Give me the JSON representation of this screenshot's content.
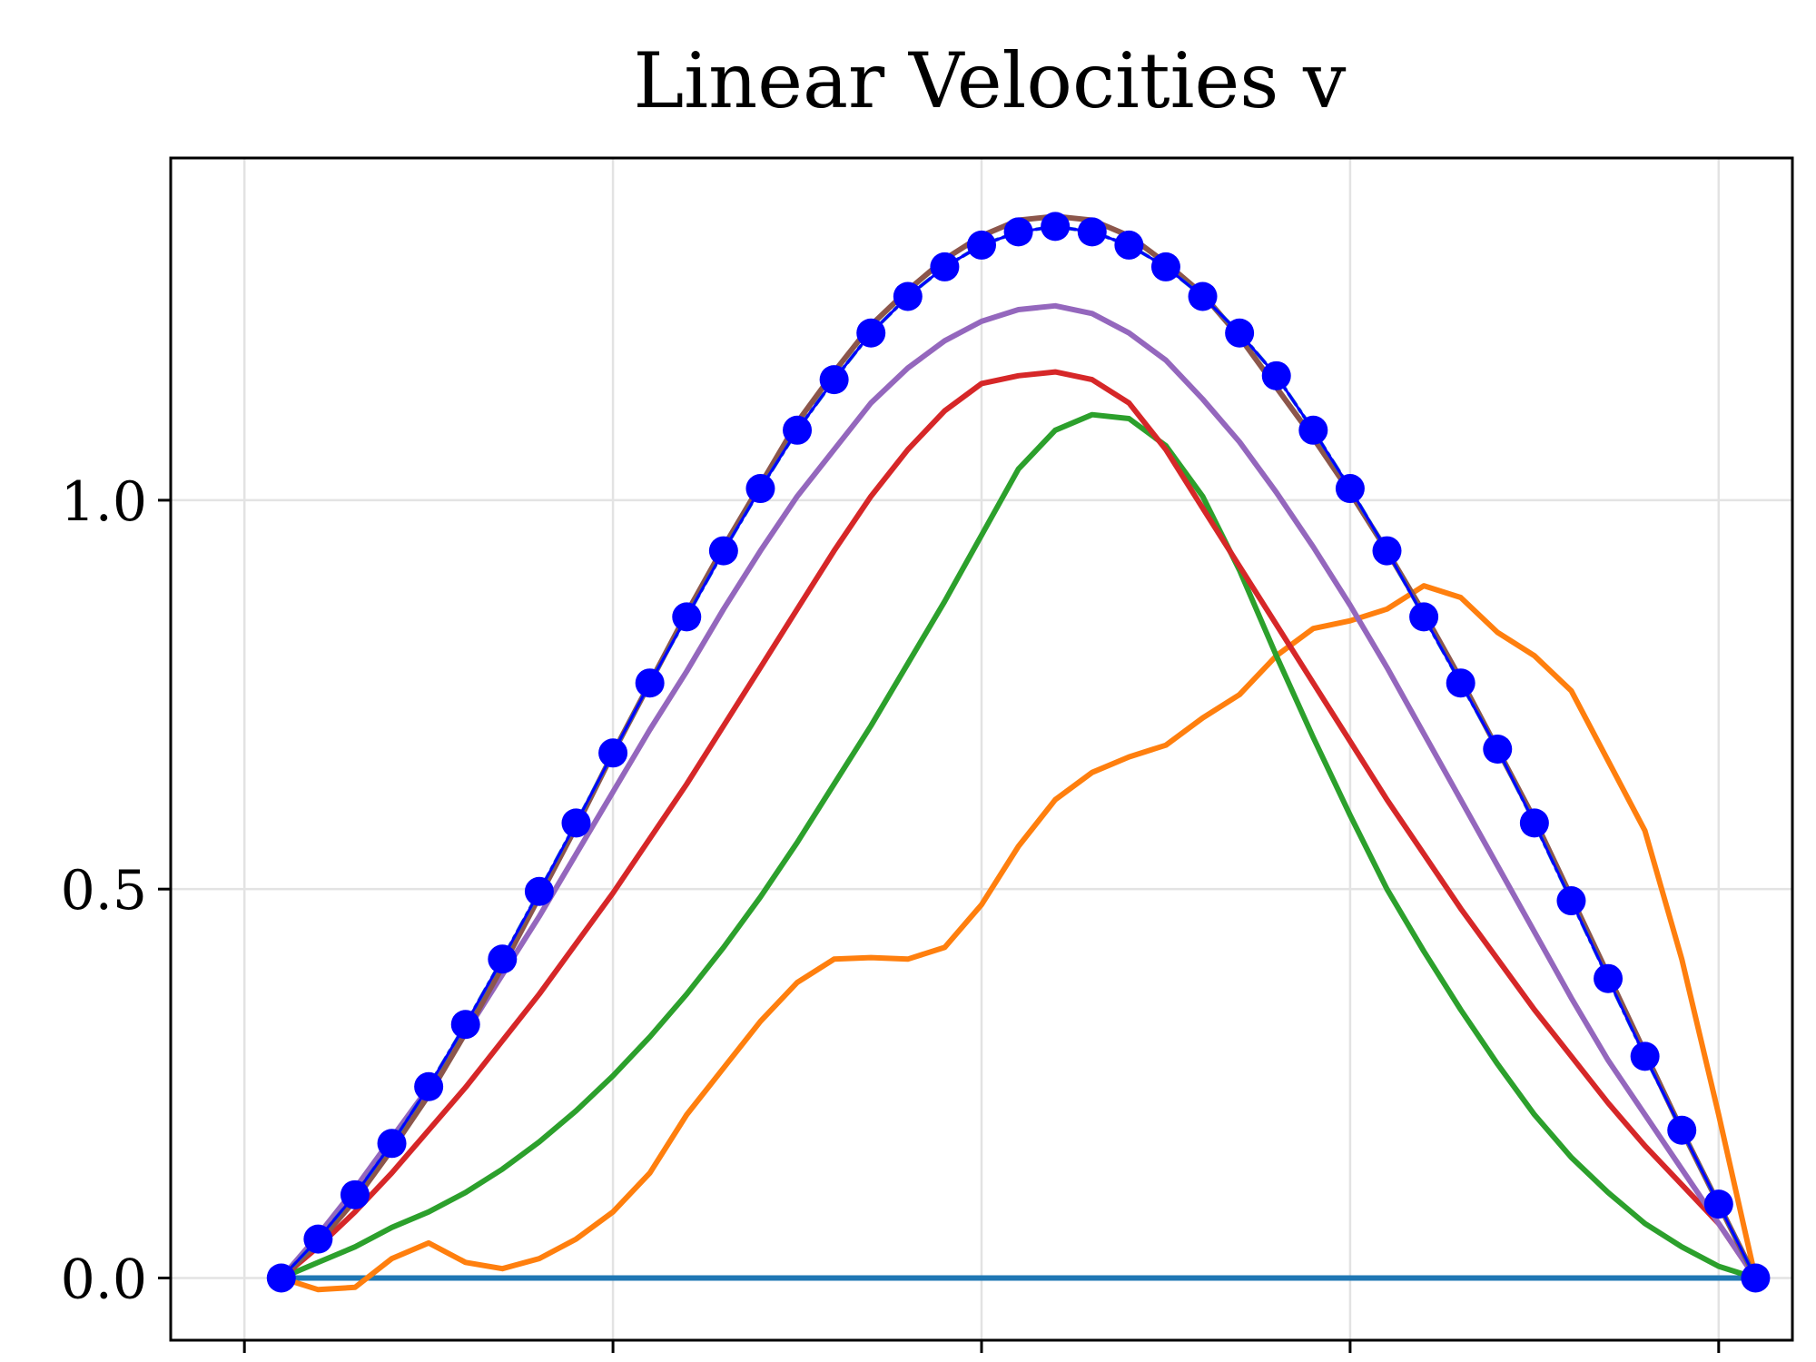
{
  "chart_data": {
    "type": "line",
    "title": "Linear Velocities v",
    "xlabel": "",
    "ylabel": "",
    "xlim": [
      -0.1,
      2.1
    ],
    "ylim": [
      -0.08,
      1.44
    ],
    "grid": true,
    "legend": "none",
    "x_ticks": [
      0,
      0.5,
      1.0,
      1.5,
      2.0
    ],
    "x_tick_labels": [
      "",
      "",
      "",
      "",
      ""
    ],
    "y_ticks": [
      0.0,
      0.5,
      1.0
    ],
    "y_tick_labels": [
      "0.0",
      "0.5",
      "1.0"
    ],
    "colors": {
      "blue_line": "#1f77b4",
      "orange": "#ff7f0e",
      "green": "#2ca02c",
      "red": "#d62728",
      "purple": "#9467bd",
      "brown": "#8c564b",
      "markers": "#0000ff"
    },
    "series": [
      {
        "color": "#1f77b4",
        "x": [
          0.05,
          2.05
        ],
        "y": [
          0.0,
          0.0
        ]
      },
      {
        "color": "#ff7f0e",
        "x": [
          0.05,
          0.1,
          0.15,
          0.2,
          0.25,
          0.3,
          0.35,
          0.4,
          0.45,
          0.5,
          0.55,
          0.6,
          0.65,
          0.7,
          0.75,
          0.8,
          0.85,
          0.9,
          0.95,
          1.0,
          1.05,
          1.1,
          1.15,
          1.2,
          1.25,
          1.3,
          1.35,
          1.4,
          1.45,
          1.5,
          1.55,
          1.6,
          1.65,
          1.7,
          1.75,
          1.8,
          1.85,
          1.9,
          1.95,
          2.0,
          2.05
        ],
        "y": [
          0.0,
          -0.015,
          -0.012,
          0.025,
          0.045,
          0.02,
          0.012,
          0.025,
          0.05,
          0.085,
          0.135,
          0.21,
          0.27,
          0.33,
          0.38,
          0.41,
          0.412,
          0.41,
          0.425,
          0.48,
          0.555,
          0.615,
          0.65,
          0.67,
          0.685,
          0.72,
          0.75,
          0.8,
          0.835,
          0.845,
          0.86,
          0.89,
          0.875,
          0.83,
          0.8,
          0.755,
          0.665,
          0.575,
          0.41,
          0.21,
          0.0
        ]
      },
      {
        "color": "#2ca02c",
        "x": [
          0.05,
          0.1,
          0.15,
          0.2,
          0.25,
          0.3,
          0.35,
          0.4,
          0.45,
          0.5,
          0.55,
          0.6,
          0.65,
          0.7,
          0.75,
          0.8,
          0.85,
          0.9,
          0.95,
          1.0,
          1.05,
          1.1,
          1.15,
          1.2,
          1.25,
          1.3,
          1.35,
          1.4,
          1.45,
          1.5,
          1.55,
          1.6,
          1.65,
          1.7,
          1.75,
          1.8,
          1.85,
          1.9,
          1.95,
          2.0,
          2.05
        ],
        "y": [
          0.0,
          0.02,
          0.04,
          0.065,
          0.085,
          0.11,
          0.14,
          0.175,
          0.215,
          0.26,
          0.31,
          0.365,
          0.425,
          0.49,
          0.56,
          0.635,
          0.71,
          0.79,
          0.87,
          0.955,
          1.04,
          1.09,
          1.11,
          1.105,
          1.07,
          1.005,
          0.91,
          0.8,
          0.695,
          0.595,
          0.5,
          0.42,
          0.345,
          0.275,
          0.21,
          0.155,
          0.11,
          0.07,
          0.04,
          0.015,
          0.0
        ]
      },
      {
        "color": "#d62728",
        "x": [
          0.05,
          0.1,
          0.15,
          0.2,
          0.25,
          0.3,
          0.35,
          0.4,
          0.45,
          0.5,
          0.55,
          0.6,
          0.65,
          0.7,
          0.75,
          0.8,
          0.85,
          0.9,
          0.95,
          1.0,
          1.05,
          1.1,
          1.15,
          1.2,
          1.25,
          1.3,
          1.35,
          1.4,
          1.45,
          1.5,
          1.55,
          1.6,
          1.65,
          1.7,
          1.75,
          1.8,
          1.85,
          1.9,
          1.95,
          2.0,
          2.05
        ],
        "y": [
          0.0,
          0.04,
          0.085,
          0.135,
          0.19,
          0.245,
          0.305,
          0.365,
          0.43,
          0.495,
          0.565,
          0.635,
          0.71,
          0.785,
          0.86,
          0.935,
          1.005,
          1.065,
          1.115,
          1.15,
          1.16,
          1.165,
          1.155,
          1.125,
          1.065,
          0.99,
          0.915,
          0.84,
          0.765,
          0.69,
          0.615,
          0.545,
          0.475,
          0.41,
          0.345,
          0.285,
          0.225,
          0.17,
          0.12,
          0.07,
          0.0
        ]
      },
      {
        "color": "#9467bd",
        "x": [
          0.05,
          0.1,
          0.15,
          0.2,
          0.25,
          0.3,
          0.35,
          0.4,
          0.45,
          0.5,
          0.55,
          0.6,
          0.65,
          0.7,
          0.75,
          0.8,
          0.85,
          0.9,
          0.95,
          1.0,
          1.05,
          1.1,
          1.15,
          1.2,
          1.25,
          1.3,
          1.35,
          1.4,
          1.45,
          1.5,
          1.55,
          1.6,
          1.65,
          1.7,
          1.75,
          1.8,
          1.85,
          1.9,
          1.95,
          2.0,
          2.05
        ],
        "y": [
          0.0,
          0.055,
          0.115,
          0.18,
          0.245,
          0.315,
          0.39,
          0.465,
          0.545,
          0.625,
          0.705,
          0.78,
          0.86,
          0.935,
          1.005,
          1.065,
          1.125,
          1.17,
          1.205,
          1.23,
          1.245,
          1.25,
          1.24,
          1.215,
          1.18,
          1.13,
          1.075,
          1.01,
          0.94,
          0.865,
          0.785,
          0.7,
          0.615,
          0.53,
          0.445,
          0.36,
          0.28,
          0.21,
          0.14,
          0.07,
          0.0
        ]
      },
      {
        "color": "#8c564b",
        "x": [
          0.05,
          0.1,
          0.15,
          0.2,
          0.25,
          0.3,
          0.35,
          0.4,
          0.45,
          0.5,
          0.55,
          0.6,
          0.65,
          0.7,
          0.75,
          0.8,
          0.85,
          0.9,
          0.95,
          1.0,
          1.05,
          1.1,
          1.15,
          1.2,
          1.25,
          1.3,
          1.35,
          1.4,
          1.45,
          1.5,
          1.55,
          1.6,
          1.65,
          1.7,
          1.75,
          1.8,
          1.85,
          1.9,
          1.95,
          2.0,
          2.05
        ],
        "y": [
          0.0,
          0.045,
          0.1,
          0.165,
          0.235,
          0.315,
          0.4,
          0.49,
          0.58,
          0.675,
          0.765,
          0.855,
          0.94,
          1.02,
          1.1,
          1.165,
          1.225,
          1.27,
          1.31,
          1.34,
          1.36,
          1.365,
          1.36,
          1.34,
          1.305,
          1.265,
          1.21,
          1.145,
          1.08,
          1.01,
          0.935,
          0.855,
          0.77,
          0.68,
          0.59,
          0.49,
          0.39,
          0.29,
          0.19,
          0.095,
          0.0
        ]
      },
      {
        "color": "#1f77b4",
        "style": "dashdot",
        "x": [
          0.05,
          0.1,
          0.15,
          0.2,
          0.25,
          0.3,
          0.35,
          0.4,
          0.45,
          0.5,
          0.55,
          0.6,
          0.65,
          0.7,
          0.75,
          0.8,
          0.85,
          0.9,
          0.95,
          1.0,
          1.05,
          1.1,
          1.15,
          1.2,
          1.25,
          1.3,
          1.35,
          1.4,
          1.45,
          1.5,
          1.55,
          1.6,
          1.65,
          1.7,
          1.75,
          1.8,
          1.85,
          1.9,
          1.95,
          2.0,
          2.05
        ],
        "y": [
          0.0,
          0.05,
          0.107,
          0.173,
          0.246,
          0.326,
          0.41,
          0.497,
          0.585,
          0.675,
          0.765,
          0.85,
          0.935,
          1.015,
          1.09,
          1.155,
          1.215,
          1.262,
          1.3,
          1.328,
          1.345,
          1.352,
          1.345,
          1.328,
          1.3,
          1.262,
          1.215,
          1.16,
          1.09,
          1.015,
          0.935,
          0.85,
          0.765,
          0.68,
          0.585,
          0.485,
          0.385,
          0.285,
          0.19,
          0.095,
          0.0
        ]
      },
      {
        "color": "#0000ff",
        "markers": true,
        "x": [
          0.05,
          0.1,
          0.15,
          0.2,
          0.25,
          0.3,
          0.35,
          0.4,
          0.45,
          0.5,
          0.55,
          0.6,
          0.65,
          0.7,
          0.75,
          0.8,
          0.85,
          0.9,
          0.95,
          1.0,
          1.05,
          1.1,
          1.15,
          1.2,
          1.25,
          1.3,
          1.35,
          1.4,
          1.45,
          1.5,
          1.55,
          1.6,
          1.65,
          1.7,
          1.75,
          1.8,
          1.85,
          1.9,
          1.95,
          2.0,
          2.05
        ],
        "y": [
          0.0,
          0.05,
          0.107,
          0.173,
          0.246,
          0.326,
          0.41,
          0.497,
          0.585,
          0.675,
          0.765,
          0.85,
          0.935,
          1.015,
          1.09,
          1.155,
          1.215,
          1.262,
          1.3,
          1.328,
          1.345,
          1.352,
          1.345,
          1.328,
          1.3,
          1.262,
          1.215,
          1.16,
          1.09,
          1.015,
          0.935,
          0.85,
          0.765,
          0.68,
          0.585,
          0.485,
          0.385,
          0.285,
          0.19,
          0.095,
          0.0
        ]
      }
    ]
  }
}
